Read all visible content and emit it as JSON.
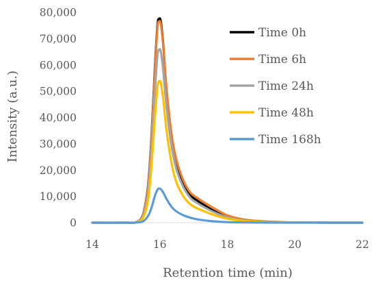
{
  "chart_data": {
    "type": "line",
    "title": "",
    "xlabel": "Retention time (min)",
    "ylabel": "Intensity (a.u.)",
    "xlim": [
      14,
      22
    ],
    "ylim": [
      0,
      80000
    ],
    "x_ticks": [
      "14",
      "16",
      "18",
      "20",
      "22"
    ],
    "y_ticks": [
      "0",
      "10,000",
      "20,000",
      "30,000",
      "40,000",
      "50,000",
      "60,000",
      "70,000",
      "80,000"
    ],
    "legend_position": "top-right",
    "grid": false,
    "series": [
      {
        "name": "Time 0h",
        "color": "#000000",
        "points": [
          [
            14,
            0
          ],
          [
            15,
            0
          ],
          [
            15.3,
            200
          ],
          [
            15.5,
            3000
          ],
          [
            15.65,
            14000
          ],
          [
            15.75,
            32000
          ],
          [
            15.85,
            58000
          ],
          [
            15.93,
            75000
          ],
          [
            15.98,
            77500
          ],
          [
            16.03,
            76500
          ],
          [
            16.1,
            68000
          ],
          [
            16.2,
            50000
          ],
          [
            16.35,
            32000
          ],
          [
            16.5,
            22000
          ],
          [
            16.7,
            15000
          ],
          [
            16.9,
            10500
          ],
          [
            17.1,
            8500
          ],
          [
            17.3,
            6800
          ],
          [
            17.6,
            4500
          ],
          [
            18,
            2200
          ],
          [
            18.5,
            900
          ],
          [
            19,
            400
          ],
          [
            19.5,
            150
          ],
          [
            20,
            60
          ],
          [
            21,
            0
          ],
          [
            22,
            0
          ]
        ]
      },
      {
        "name": "Time 6h",
        "color": "#ED7D31",
        "points": [
          [
            14,
            0
          ],
          [
            15,
            0
          ],
          [
            15.3,
            200
          ],
          [
            15.5,
            2800
          ],
          [
            15.65,
            13500
          ],
          [
            15.75,
            31000
          ],
          [
            15.85,
            57000
          ],
          [
            15.93,
            74000
          ],
          [
            15.98,
            76500
          ],
          [
            16.03,
            75500
          ],
          [
            16.1,
            67500
          ],
          [
            16.2,
            51000
          ],
          [
            16.35,
            33500
          ],
          [
            16.5,
            23500
          ],
          [
            16.7,
            16000
          ],
          [
            16.9,
            11500
          ],
          [
            17.1,
            9500
          ],
          [
            17.3,
            7800
          ],
          [
            17.6,
            5500
          ],
          [
            18,
            2800
          ],
          [
            18.5,
            1200
          ],
          [
            19,
            600
          ],
          [
            19.5,
            300
          ],
          [
            20,
            100
          ],
          [
            21,
            0
          ],
          [
            22,
            0
          ]
        ]
      },
      {
        "name": "Time 24h",
        "color": "#A5A5A5",
        "points": [
          [
            14,
            0
          ],
          [
            15,
            0
          ],
          [
            15.3,
            150
          ],
          [
            15.5,
            2500
          ],
          [
            15.65,
            11500
          ],
          [
            15.75,
            27000
          ],
          [
            15.85,
            49000
          ],
          [
            15.93,
            63500
          ],
          [
            15.98,
            65800
          ],
          [
            16.03,
            65000
          ],
          [
            16.1,
            58000
          ],
          [
            16.2,
            44000
          ],
          [
            16.35,
            29000
          ],
          [
            16.5,
            20000
          ],
          [
            16.7,
            13500
          ],
          [
            16.9,
            9500
          ],
          [
            17.1,
            7500
          ],
          [
            17.3,
            6000
          ],
          [
            17.6,
            4000
          ],
          [
            18,
            2000
          ],
          [
            18.5,
            800
          ],
          [
            19,
            350
          ],
          [
            19.5,
            150
          ],
          [
            20,
            50
          ],
          [
            21,
            0
          ],
          [
            22,
            0
          ]
        ]
      },
      {
        "name": "Time 48h",
        "color": "#FFC000",
        "points": [
          [
            14,
            0
          ],
          [
            15,
            0
          ],
          [
            15.3,
            100
          ],
          [
            15.5,
            1800
          ],
          [
            15.65,
            8500
          ],
          [
            15.75,
            21000
          ],
          [
            15.85,
            39000
          ],
          [
            15.93,
            51500
          ],
          [
            15.98,
            53800
          ],
          [
            16.03,
            53000
          ],
          [
            16.1,
            47000
          ],
          [
            16.2,
            35000
          ],
          [
            16.35,
            22500
          ],
          [
            16.5,
            15000
          ],
          [
            16.7,
            10000
          ],
          [
            16.9,
            7000
          ],
          [
            17.1,
            5500
          ],
          [
            17.3,
            4400
          ],
          [
            17.6,
            2900
          ],
          [
            18,
            1500
          ],
          [
            18.5,
            600
          ],
          [
            19,
            250
          ],
          [
            19.5,
            100
          ],
          [
            20,
            30
          ],
          [
            21,
            0
          ],
          [
            22,
            0
          ]
        ]
      },
      {
        "name": "Time 168h",
        "color": "#5B9BD5",
        "points": [
          [
            14,
            0
          ],
          [
            15,
            0
          ],
          [
            15.3,
            50
          ],
          [
            15.5,
            500
          ],
          [
            15.65,
            2500
          ],
          [
            15.75,
            5500
          ],
          [
            15.85,
            10000
          ],
          [
            15.93,
            12500
          ],
          [
            15.98,
            13000
          ],
          [
            16.03,
            12700
          ],
          [
            16.1,
            11500
          ],
          [
            16.2,
            9000
          ],
          [
            16.35,
            6000
          ],
          [
            16.5,
            4200
          ],
          [
            16.7,
            2800
          ],
          [
            16.9,
            1900
          ],
          [
            17.1,
            1300
          ],
          [
            17.3,
            900
          ],
          [
            17.6,
            500
          ],
          [
            18,
            200
          ],
          [
            18.5,
            80
          ],
          [
            19,
            30
          ],
          [
            20,
            0
          ],
          [
            21,
            0
          ],
          [
            22,
            0
          ]
        ]
      }
    ]
  }
}
